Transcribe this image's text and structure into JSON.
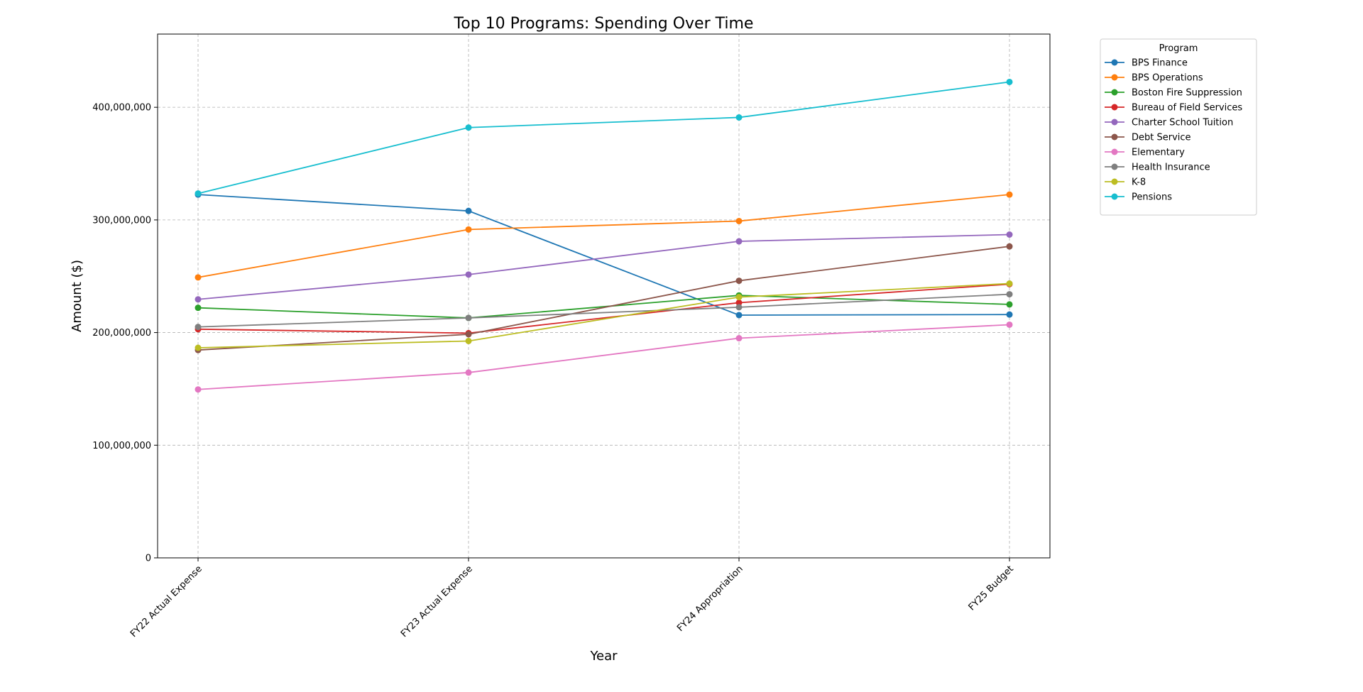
{
  "chart_data": {
    "type": "line",
    "title": "Top 10 Programs: Spending Over Time",
    "xlabel": "Year",
    "ylabel": "Amount ($)",
    "categories": [
      "FY22 Actual Expense",
      "FY23 Actual Expense",
      "FY24 Appropriation",
      "FY25 Budget"
    ],
    "ylim": [
      0,
      465000000
    ],
    "yticks": [
      0,
      100000000,
      200000000,
      300000000,
      400000000
    ],
    "ytick_labels": [
      "0",
      "100,000,000",
      "200,000,000",
      "300,000,000",
      "400,000,000"
    ],
    "grid": true,
    "legend_title": "Program",
    "legend_position": "outside-top-right",
    "series": [
      {
        "name": "BPS Finance",
        "color": "#1f77b4",
        "values": [
          322500000,
          308000000,
          215500000,
          216000000
        ]
      },
      {
        "name": "BPS Operations",
        "color": "#ff7f0e",
        "values": [
          249000000,
          291500000,
          299000000,
          322500000
        ]
      },
      {
        "name": "Boston Fire Suppression",
        "color": "#2ca02c",
        "values": [
          222000000,
          213000000,
          233000000,
          225000000
        ]
      },
      {
        "name": "Bureau of Field Services",
        "color": "#d62728",
        "values": [
          203000000,
          199500000,
          226500000,
          243000000
        ]
      },
      {
        "name": "Charter School Tuition",
        "color": "#9467bd",
        "values": [
          229500000,
          251500000,
          281000000,
          287000000
        ]
      },
      {
        "name": "Debt Service",
        "color": "#8c564b",
        "values": [
          184500000,
          198500000,
          246000000,
          276500000
        ]
      },
      {
        "name": "Elementary",
        "color": "#e377c2",
        "values": [
          149500000,
          164500000,
          195000000,
          207000000
        ]
      },
      {
        "name": "Health Insurance",
        "color": "#7f7f7f",
        "values": [
          205000000,
          213000000,
          222500000,
          234000000
        ]
      },
      {
        "name": "K-8",
        "color": "#bcbd22",
        "values": [
          186500000,
          192500000,
          231500000,
          243500000
        ]
      },
      {
        "name": "Pensions",
        "color": "#17becf",
        "values": [
          323500000,
          382000000,
          391000000,
          422500000
        ]
      }
    ]
  }
}
